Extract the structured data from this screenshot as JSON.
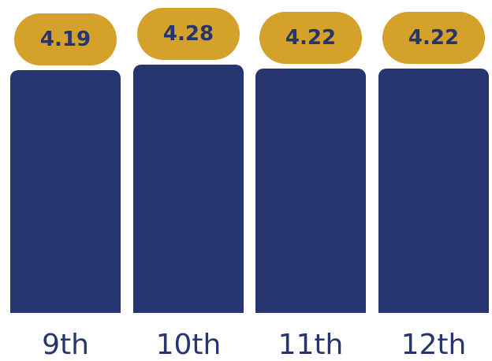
{
  "colors": {
    "bar": "#263570",
    "pill": "#d4a22b",
    "label": "#263570"
  },
  "chart_data": {
    "type": "bar",
    "categories": [
      "9th",
      "10th",
      "11th",
      "12th"
    ],
    "values": [
      4.19,
      4.28,
      4.22,
      4.22
    ],
    "data_labels": [
      "4.19",
      "4.28",
      "4.22",
      "4.22"
    ],
    "title": "",
    "xlabel": "",
    "ylabel": "",
    "grid": false,
    "legend": "none"
  }
}
